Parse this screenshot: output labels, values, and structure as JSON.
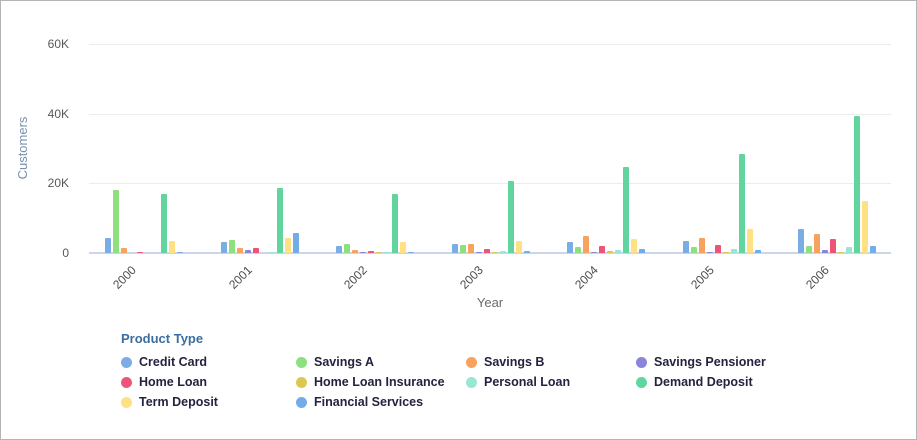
{
  "y_axis": {
    "title": "Customers"
  },
  "x_axis": {
    "title": "Year"
  },
  "legend": {
    "title": "Product Type"
  },
  "chart_data": {
    "type": "bar",
    "title": "",
    "xlabel": "Year",
    "ylabel": "Customers",
    "ylim": [
      0,
      60000
    ],
    "grid": true,
    "legend_position": "bottom",
    "y_ticks": [
      {
        "value": 0,
        "label": "0"
      },
      {
        "value": 20000,
        "label": "20K"
      },
      {
        "value": 40000,
        "label": "40K"
      },
      {
        "value": 60000,
        "label": "60K"
      }
    ],
    "categories": [
      "2000",
      "2001",
      "2002",
      "2003",
      "2004",
      "2005",
      "2006"
    ],
    "series": [
      {
        "name": "Credit Card",
        "color": "#79ADE3",
        "values": [
          4200,
          3200,
          2100,
          2700,
          3100,
          3500,
          6800
        ]
      },
      {
        "name": "Savings A",
        "color": "#8EDF7E",
        "values": [
          18000,
          3800,
          2700,
          2300,
          1800,
          1600,
          1900
        ]
      },
      {
        "name": "Savings B",
        "color": "#F5A35F",
        "values": [
          1500,
          1400,
          900,
          2500,
          4900,
          4200,
          5600
        ]
      },
      {
        "name": "Savings Pensioner",
        "color": "#8986D9",
        "values": [
          0,
          1000,
          100,
          150,
          150,
          400,
          1000
        ]
      },
      {
        "name": "Home Loan",
        "color": "#EF5377",
        "values": [
          400,
          1400,
          600,
          1200,
          1900,
          2300,
          4000
        ]
      },
      {
        "name": "Home Loan Insurance",
        "color": "#DCC751",
        "values": [
          0,
          0,
          50,
          100,
          700,
          100,
          200
        ]
      },
      {
        "name": "Personal Loan",
        "color": "#98E6D4",
        "values": [
          0,
          100,
          100,
          600,
          900,
          1200,
          1700
        ]
      },
      {
        "name": "Demand Deposit",
        "color": "#61D59D",
        "values": [
          17000,
          18800,
          17000,
          20800,
          24600,
          28300,
          39200
        ]
      },
      {
        "name": "Term Deposit",
        "color": "#FFE083",
        "values": [
          3500,
          4200,
          3100,
          3400,
          4100,
          7000,
          15000
        ]
      },
      {
        "name": "Financial Services",
        "color": "#73ADE9",
        "values": [
          150,
          5700,
          400,
          500,
          1100,
          1000,
          2100
        ]
      }
    ]
  }
}
